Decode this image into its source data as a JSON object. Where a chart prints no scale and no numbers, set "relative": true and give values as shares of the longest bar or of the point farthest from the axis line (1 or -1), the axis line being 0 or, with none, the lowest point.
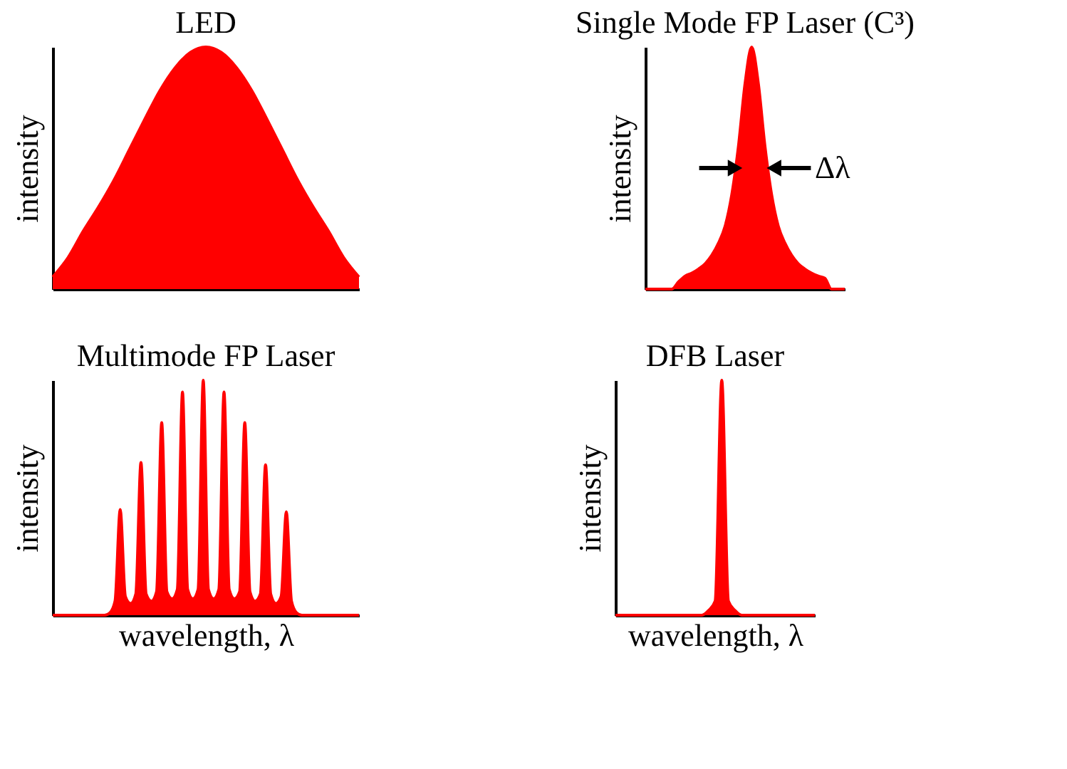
{
  "chart_data": [
    {
      "type": "area",
      "title": "LED",
      "ylabel": "intensity",
      "relative": true,
      "categories": [
        null,
        null,
        null,
        null,
        null,
        null,
        null,
        null,
        null,
        null,
        null,
        null,
        null,
        null,
        null,
        null,
        null,
        null,
        null,
        null,
        null
      ],
      "series": [
        {
          "color": "#ff0000",
          "values": [
            0.05,
            0.13,
            0.24,
            0.34,
            0.45,
            0.575,
            0.7,
            0.82,
            0.915,
            0.978,
            1,
            0.978,
            0.915,
            0.82,
            0.7,
            0.575,
            0.45,
            0.34,
            0.24,
            0.13,
            0.05
          ]
        }
      ]
    },
    {
      "type": "area",
      "title": "Single Mode FP Laser (C³)",
      "ylabel": "intensity",
      "relative": true,
      "annotations": [
        "Δλ"
      ],
      "categories": [
        null,
        null,
        null,
        null,
        null,
        null,
        null,
        null,
        null,
        null,
        null,
        null,
        null,
        null,
        null,
        null,
        null,
        null,
        null,
        null,
        null,
        null,
        null,
        null,
        null,
        null,
        null,
        null,
        null,
        null,
        null
      ],
      "series": [
        {
          "color": "#ff0000",
          "values": [
            0,
            0,
            0,
            0,
            0,
            0.03,
            0.054,
            0.066,
            0.083,
            0.105,
            0.14,
            0.19,
            0.26,
            0.39,
            0.59,
            0.85,
            1,
            0.85,
            0.59,
            0.39,
            0.26,
            0.19,
            0.14,
            0.105,
            0.083,
            0.066,
            0.054,
            0.045,
            0.0,
            0,
            0
          ]
        }
      ]
    },
    {
      "type": "area",
      "title": "Multimode FP Laser",
      "xlabel": "wavelength, λ",
      "ylabel": "intensity",
      "relative": true,
      "categories": [
        null,
        null,
        null,
        null,
        null,
        null,
        null,
        null,
        null,
        null,
        null,
        null,
        null,
        null,
        null,
        null,
        null,
        null,
        null,
        null,
        null,
        null,
        null,
        null,
        null,
        null,
        null,
        null,
        null,
        null,
        null,
        null,
        null,
        null,
        null,
        null,
        null,
        null,
        null,
        null,
        null,
        null,
        null,
        null,
        null,
        null,
        null,
        null,
        null,
        null,
        null,
        null,
        null,
        null,
        null,
        null,
        null,
        null,
        null,
        null
      ],
      "series": [
        {
          "color": "#ff0000",
          "values": [
            0,
            0,
            0,
            0,
            0,
            0,
            0,
            0,
            0,
            0,
            0,
            0.01,
            0.06,
            0.45,
            0.08,
            0.05,
            0.09,
            0.65,
            0.09,
            0.06,
            0.1,
            0.82,
            0.1,
            0.07,
            0.11,
            0.95,
            0.11,
            0.07,
            0.11,
            1,
            0.11,
            0.07,
            0.11,
            0.95,
            0.11,
            0.07,
            0.1,
            0.82,
            0.1,
            0.06,
            0.09,
            0.64,
            0.09,
            0.05,
            0.08,
            0.44,
            0.06,
            0.01,
            0,
            0,
            0,
            0,
            0,
            0,
            0,
            0,
            0,
            0,
            0,
            0
          ]
        }
      ]
    },
    {
      "type": "area",
      "title": "DFB Laser",
      "xlabel": "wavelength, λ",
      "ylabel": "intensity",
      "relative": true,
      "categories": [
        null,
        null,
        null,
        null,
        null,
        null,
        null,
        null,
        null,
        null,
        null,
        null,
        null,
        null,
        null,
        null,
        null,
        null,
        null,
        null,
        null,
        null,
        null,
        null,
        null,
        null,
        null,
        null,
        null,
        null,
        null
      ],
      "series": [
        {
          "color": "#ff0000",
          "values": [
            0,
            0,
            0,
            0,
            0,
            0,
            0,
            0,
            0,
            0,
            0,
            0,
            0,
            0,
            0.02,
            0.06,
            1,
            0.06,
            0.02,
            0,
            0,
            0,
            0,
            0,
            0,
            0,
            0,
            0,
            0,
            0,
            0
          ]
        }
      ]
    }
  ]
}
